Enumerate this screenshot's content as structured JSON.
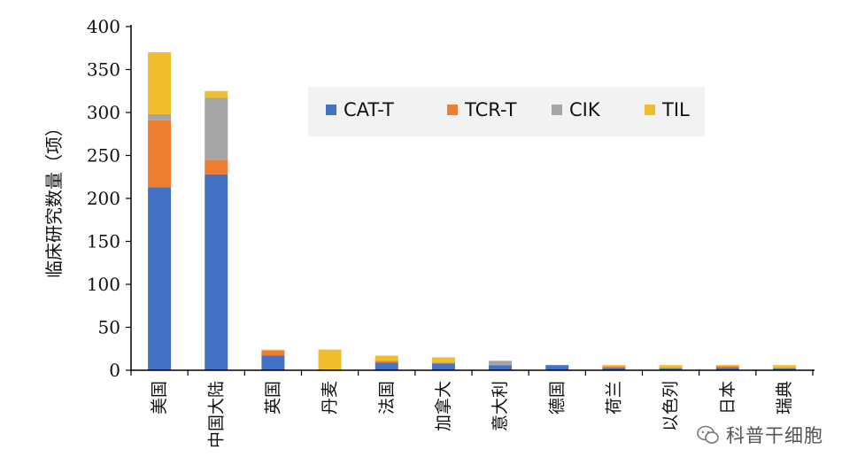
{
  "chart_data": {
    "type": "bar",
    "stacked": true,
    "title": "",
    "xlabel": "",
    "ylabel": "临床研究数量（项）",
    "ylim": [
      0,
      400
    ],
    "yticks": [
      0,
      50,
      100,
      150,
      200,
      250,
      300,
      350,
      400
    ],
    "categories": [
      "美国",
      "中国大陆",
      "英国",
      "丹麦",
      "法国",
      "加拿大",
      "意大利",
      "德国",
      "荷兰",
      "以色列",
      "日本",
      "瑞典"
    ],
    "series": [
      {
        "name": "CAT-T",
        "color": "#4472C4",
        "values": [
          213,
          228,
          17,
          1,
          9,
          8,
          6,
          6,
          3,
          2,
          3,
          2
        ]
      },
      {
        "name": "TCR-T",
        "color": "#ED7D31",
        "values": [
          78,
          17,
          6,
          0,
          2,
          1,
          0,
          0,
          1,
          1,
          2,
          1
        ]
      },
      {
        "name": "CIK",
        "color": "#A5A5A5",
        "values": [
          7,
          72,
          0,
          0,
          0,
          0,
          5,
          0,
          1,
          0,
          0,
          0
        ]
      },
      {
        "name": "TIL",
        "color": "#F0BD2D",
        "values": [
          72,
          8,
          1,
          23,
          6,
          6,
          0,
          0,
          1,
          3,
          1,
          3
        ]
      }
    ],
    "legend_position": "top-center",
    "grid": false
  },
  "watermark": {
    "text": "科普干细胞",
    "icon": "wechat-icon"
  }
}
